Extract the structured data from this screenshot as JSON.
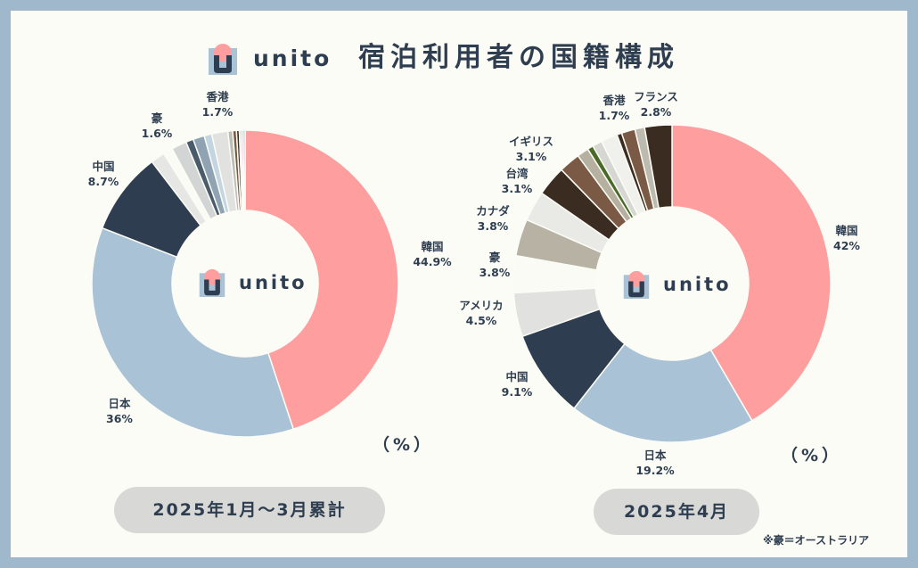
{
  "header": {
    "brand": "unito",
    "title": "宿泊利用者の国籍構成"
  },
  "center_brand": "unito",
  "footnote": "※豪＝オーストラリア",
  "colors": {
    "brand_pink": "#ff9e9e",
    "brand_navy": "#2e3e50",
    "brand_blue": "#a9c2d6"
  },
  "chart_data": [
    {
      "type": "pie",
      "donut": true,
      "period": "2025年1月～3月累計",
      "unit": "（%）",
      "slices": [
        {
          "label": "韓国",
          "value": 44.9,
          "display": "44.9%",
          "color": "#ff9e9e"
        },
        {
          "label": "日本",
          "value": 36,
          "display": "36%",
          "color": "#a9c2d6"
        },
        {
          "label": "中国",
          "value": 8.7,
          "display": "8.7%",
          "color": "#2e3e50"
        },
        {
          "label": "",
          "value": 1.5,
          "color": "#e6e6e4"
        },
        {
          "label": "",
          "value": 1.0,
          "color": "#fbfbf6"
        },
        {
          "label": "豪",
          "value": 1.6,
          "display": "1.6%",
          "color": "#d3d5d4"
        },
        {
          "label": "",
          "value": 0.8,
          "color": "#4a5b6b"
        },
        {
          "label": "",
          "value": 1.2,
          "color": "#8fa3b3"
        },
        {
          "label": "",
          "value": 0.8,
          "color": "#c4d5e2"
        },
        {
          "label": "香港",
          "value": 1.7,
          "display": "1.7%",
          "color": "#e1e1df"
        },
        {
          "label": "",
          "value": 0.5,
          "color": "#bdbdb8"
        },
        {
          "label": "",
          "value": 0.4,
          "color": "#7b5a45"
        },
        {
          "label": "",
          "value": 0.3,
          "color": "#3a2c20"
        },
        {
          "label": "",
          "value": 0.2,
          "color": "#d9c4e8"
        },
        {
          "label": "",
          "value": 0.2,
          "color": "#ff80b0"
        },
        {
          "label": "",
          "value": 0.2,
          "color": "#8fb0d8"
        }
      ]
    },
    {
      "type": "pie",
      "donut": true,
      "period": "2025年4月",
      "unit": "（%）",
      "slices": [
        {
          "label": "韓国",
          "value": 42,
          "display": "42%",
          "color": "#ff9e9e"
        },
        {
          "label": "日本",
          "value": 19.2,
          "display": "19.2%",
          "color": "#a9c2d6"
        },
        {
          "label": "中国",
          "value": 9.1,
          "display": "9.1%",
          "color": "#2e3e50"
        },
        {
          "label": "アメリカ",
          "value": 4.5,
          "display": "4.5%",
          "color": "#e1e1df"
        },
        {
          "label": "豪",
          "value": 3.8,
          "display": "3.8%",
          "color": "#fbfbf6"
        },
        {
          "label": "カナダ",
          "value": 3.8,
          "display": "3.8%",
          "color": "#b7b2a4"
        },
        {
          "label": "台湾",
          "value": 3.1,
          "display": "3.1%",
          "color": "#e9e9e6"
        },
        {
          "label": "イギリス",
          "value": 3.1,
          "display": "3.1%",
          "color": "#3a2c20"
        },
        {
          "label": "",
          "value": 2.2,
          "color": "#7b5a45"
        },
        {
          "label": "",
          "value": 1.2,
          "color": "#b5b0a0"
        },
        {
          "label": "",
          "value": 0.6,
          "color": "#4a6a2a"
        },
        {
          "label": "",
          "value": 1.0,
          "color": "#d6d6d2"
        },
        {
          "label": "香港",
          "value": 1.7,
          "display": "1.7%",
          "color": "#f0f0ec"
        },
        {
          "label": "",
          "value": 0.5,
          "color": "#3a2c20"
        },
        {
          "label": "",
          "value": 1.4,
          "color": "#7b5a45"
        },
        {
          "label": "",
          "value": 1.0,
          "color": "#bdbab0"
        },
        {
          "label": "フランス",
          "value": 2.8,
          "display": "2.8%",
          "color": "#3a2c20"
        }
      ]
    }
  ]
}
